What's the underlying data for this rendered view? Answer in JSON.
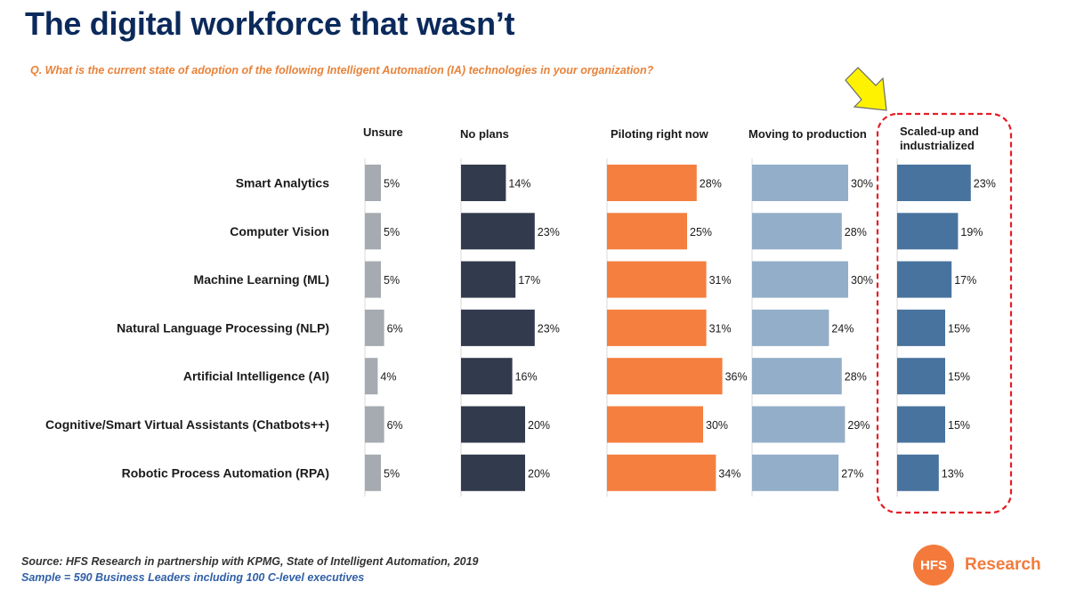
{
  "title": "The digital workforce that wasn’t",
  "question": "Q. What is the current state of adoption of the following Intelligent Automation (IA) technologies in your organization?",
  "source": "Source: HFS Research in partnership with KPMG, State of Intelligent Automation, 2019",
  "sample": "Sample = 590 Business Leaders including 100 C-level executives",
  "logo": {
    "circle_text": "HFS",
    "text": "Research"
  },
  "colors": {
    "Unsure": "#a5abb0",
    "No plans": "#323a4d",
    "Piloting right now": "#f47f3f",
    "Moving to production": "#93aec8",
    "Scaled-up and industrialized": "#48739e",
    "highlight_box": "#e41e26",
    "arrow_fill": "#fff200"
  },
  "chart_data": {
    "type": "bar",
    "orientation": "horizontal-small-multiples",
    "value_suffix": "%",
    "categories": [
      "Smart Analytics",
      "Computer Vision",
      "Machine Learning (ML)",
      "Natural Language Processing (NLP)",
      "Artificial Intelligence (AI)",
      "Cognitive/Smart Virtual Assistants (Chatbots++)",
      "Robotic Process Automation (RPA)"
    ],
    "series": [
      {
        "name": "Unsure",
        "values": [
          5,
          5,
          5,
          6,
          4,
          6,
          5
        ]
      },
      {
        "name": "No plans",
        "values": [
          14,
          23,
          17,
          23,
          16,
          20,
          20
        ]
      },
      {
        "name": "Piloting right now",
        "values": [
          28,
          25,
          31,
          31,
          36,
          30,
          34
        ]
      },
      {
        "name": "Moving to production",
        "values": [
          30,
          28,
          30,
          24,
          28,
          29,
          27
        ]
      },
      {
        "name": "Scaled-up and industrialized",
        "values": [
          23,
          19,
          17,
          15,
          15,
          15,
          13
        ]
      }
    ],
    "highlighted_series": "Scaled-up and industrialized",
    "grid": false,
    "legend": "none"
  }
}
